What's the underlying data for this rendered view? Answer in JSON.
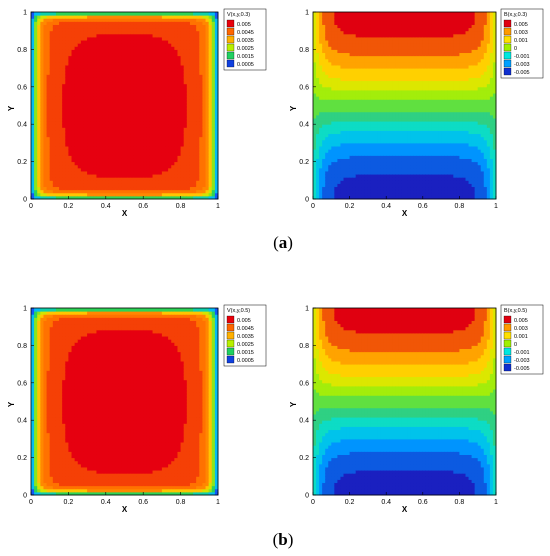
{
  "figure": {
    "captions": [
      {
        "prefix": "(",
        "label": "a",
        "suffix": ")"
      },
      {
        "prefix": "(",
        "label": "b",
        "suffix": ")"
      }
    ]
  },
  "chart_data": [
    {
      "type": "heatmap",
      "id": "V_a",
      "legend_title": "V(x,y,0.3)",
      "legend_levels": [
        "0.005",
        "0.0045",
        "0.0035",
        "0.0025",
        "0.0015",
        "0.0005"
      ],
      "legend_colors": [
        "#e8000b",
        "#ff6600",
        "#ffb000",
        "#b8f000",
        "#20d060",
        "#1040e0"
      ],
      "xlabel": "X",
      "ylabel": "Y",
      "xticks": [
        "0",
        "0.2",
        "0.4",
        "0.6",
        "0.8",
        "1"
      ],
      "yticks": [
        "0",
        "0.2",
        "0.4",
        "0.6",
        "0.8",
        "1"
      ],
      "xlim": [
        0,
        1
      ],
      "ylim": [
        0,
        1
      ],
      "field": "velocity",
      "max_value": 0.0052
    },
    {
      "type": "heatmap",
      "id": "B_a",
      "legend_title": "B(x,y,0.3)",
      "legend_levels": [
        "0.005",
        "0.003",
        "0.001",
        "0",
        "-0.001",
        "-0.003",
        "-0.005"
      ],
      "legend_colors": [
        "#e00010",
        "#ff9a00",
        "#ffe000",
        "#a0f000",
        "#00e8e0",
        "#00a0ff",
        "#1030d0"
      ],
      "xlabel": "X",
      "ylabel": "Y",
      "xticks": [
        "0",
        "0.2",
        "0.4",
        "0.6",
        "0.8",
        "1"
      ],
      "yticks": [
        "0",
        "0.2",
        "0.4",
        "0.6",
        "0.8",
        "1"
      ],
      "xlim": [
        0,
        1
      ],
      "ylim": [
        0,
        1
      ],
      "field": "magnetic",
      "max_value": 0.0056
    },
    {
      "type": "heatmap",
      "id": "V_b",
      "legend_title": "V(x,y,0.5)",
      "legend_levels": [
        "0.005",
        "0.0045",
        "0.0035",
        "0.0025",
        "0.0015",
        "0.0005"
      ],
      "legend_colors": [
        "#e8000b",
        "#ff6600",
        "#ffb000",
        "#b8f000",
        "#20d060",
        "#1040e0"
      ],
      "xlabel": "X",
      "ylabel": "Y",
      "xticks": [
        "0",
        "0.2",
        "0.4",
        "0.6",
        "0.8",
        "1"
      ],
      "yticks": [
        "0",
        "0.2",
        "0.4",
        "0.6",
        "0.8",
        "1"
      ],
      "xlim": [
        0,
        1
      ],
      "ylim": [
        0,
        1
      ],
      "field": "velocity",
      "max_value": 0.0052
    },
    {
      "type": "heatmap",
      "id": "B_b",
      "legend_title": "B(x,y,0.5)",
      "legend_levels": [
        "0.005",
        "0.003",
        "0.001",
        "0",
        "-0.001",
        "-0.003",
        "-0.005"
      ],
      "legend_colors": [
        "#e00010",
        "#ff9a00",
        "#ffe000",
        "#a0f000",
        "#00e8e0",
        "#00a0ff",
        "#1030d0"
      ],
      "xlabel": "X",
      "ylabel": "Y",
      "xticks": [
        "0",
        "0.2",
        "0.4",
        "0.6",
        "0.8",
        "1"
      ],
      "yticks": [
        "0",
        "0.2",
        "0.4",
        "0.6",
        "0.8",
        "1"
      ],
      "xlim": [
        0,
        1
      ],
      "ylim": [
        0,
        1
      ],
      "field": "magnetic",
      "max_value": 0.0056
    }
  ]
}
